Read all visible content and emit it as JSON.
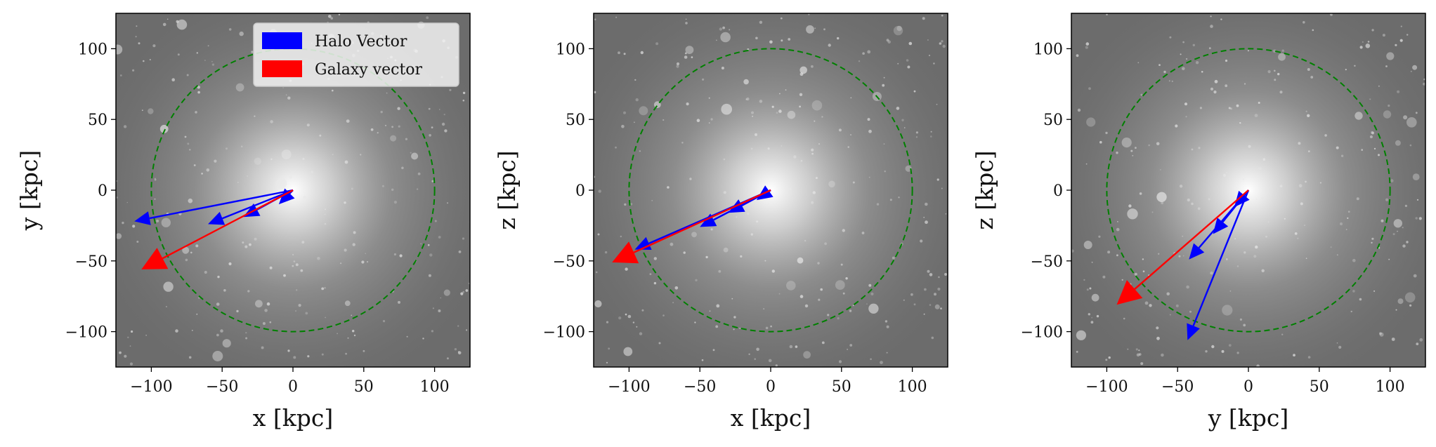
{
  "chart_data": [
    {
      "type": "scatter",
      "title": "",
      "xlabel": "x [kpc]",
      "ylabel": "y [kpc]",
      "xlim": [
        -125,
        125
      ],
      "ylim": [
        -125,
        125
      ],
      "xticks": [
        -100,
        -50,
        0,
        50,
        100
      ],
      "yticks": [
        -100,
        -50,
        0,
        50,
        100
      ],
      "xtick_labels": [
        "−100",
        "−50",
        "0",
        "50",
        "100"
      ],
      "ytick_labels": [
        "−100",
        "−50",
        "0",
        "50",
        "100"
      ],
      "circle": {
        "center": [
          0,
          0
        ],
        "radius": 100,
        "style": "dashed",
        "color": "#008000"
      },
      "background": "grayscale density image",
      "legend": {
        "placement": "top-right",
        "entries": [
          {
            "label": "Halo Vector",
            "color": "#0000ff"
          },
          {
            "label": "Galaxy vector",
            "color": "#ff0000"
          }
        ]
      },
      "series": [
        {
          "name": "Halo Vector",
          "color": "#0000ff",
          "vectors": [
            [
              -112,
              -22
            ],
            [
              -60,
              -24
            ],
            [
              -35,
              -19
            ],
            [
              -10,
              -10
            ]
          ]
        },
        {
          "name": "Galaxy vector",
          "color": "#ff0000",
          "vectors": [
            [
              -107,
              -56
            ]
          ]
        }
      ]
    },
    {
      "type": "scatter",
      "title": "",
      "xlabel": "x [kpc]",
      "ylabel": "z [kpc]",
      "xlim": [
        -125,
        125
      ],
      "ylim": [
        -125,
        125
      ],
      "xticks": [
        -100,
        -50,
        0,
        50,
        100
      ],
      "yticks": [
        -100,
        -50,
        0,
        50,
        100
      ],
      "xtick_labels": [
        "−100",
        "−50",
        "0",
        "50",
        "100"
      ],
      "ytick_labels": [
        "−100",
        "−50",
        "0",
        "50",
        "100"
      ],
      "circle": {
        "center": [
          0,
          0
        ],
        "radius": 100,
        "style": "dashed",
        "color": "#008000"
      },
      "background": "grayscale density image",
      "series": [
        {
          "name": "Halo Vector",
          "color": "#0000ff",
          "vectors": [
            [
              -96,
              -42
            ],
            [
              -50,
              -26
            ],
            [
              -30,
              -16
            ],
            [
              -10,
              -7
            ]
          ]
        },
        {
          "name": "Galaxy vector",
          "color": "#ff0000",
          "vectors": [
            [
              -112,
              -51
            ]
          ]
        }
      ]
    },
    {
      "type": "scatter",
      "title": "",
      "xlabel": "y [kpc]",
      "ylabel": "z [kpc]",
      "xlim": [
        -125,
        125
      ],
      "ylim": [
        -125,
        125
      ],
      "xticks": [
        -100,
        -50,
        0,
        50,
        100
      ],
      "yticks": [
        -100,
        -50,
        0,
        50,
        100
      ],
      "xtick_labels": [
        "−100",
        "−50",
        "0",
        "50",
        "100"
      ],
      "ytick_labels": [
        "−100",
        "−50",
        "0",
        "50",
        "100"
      ],
      "circle": {
        "center": [
          0,
          0
        ],
        "radius": 100,
        "style": "dashed",
        "color": "#008000"
      },
      "background": "grayscale density image",
      "series": [
        {
          "name": "Halo Vector",
          "color": "#0000ff",
          "vectors": [
            [
              -43,
              -106
            ],
            [
              -42,
              -49
            ],
            [
              -25,
              -31
            ],
            [
              -10,
              -12
            ]
          ]
        },
        {
          "name": "Galaxy vector",
          "color": "#ff0000",
          "vectors": [
            [
              -93,
              -81
            ]
          ]
        }
      ]
    }
  ]
}
